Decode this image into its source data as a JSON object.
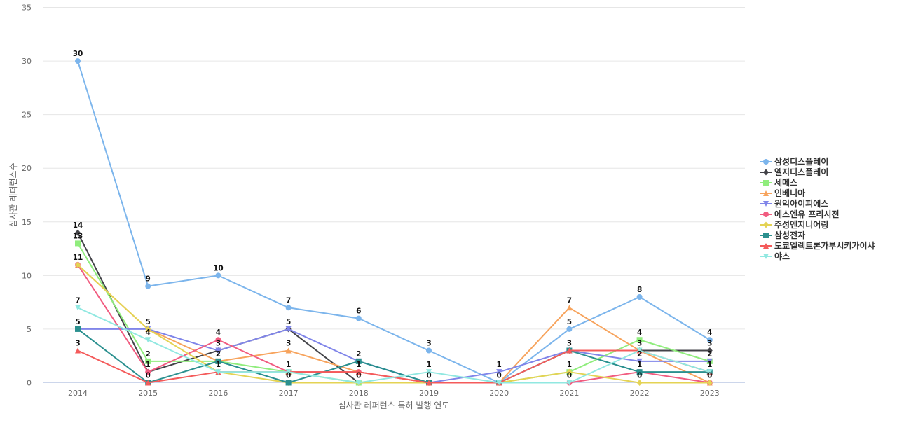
{
  "chart_data": {
    "type": "line",
    "title": "",
    "xlabel": "심사관 레퍼런스 특허 발행 연도",
    "ylabel": "심사관 레퍼런스수",
    "ylim": [
      0,
      35
    ],
    "yticks": [
      0,
      5,
      10,
      15,
      20,
      25,
      30,
      35
    ],
    "grid": true,
    "legend_position": "right",
    "x": [
      "2014",
      "2015",
      "2016",
      "2017",
      "2018",
      "2019",
      "2020",
      "2021",
      "2022",
      "2023"
    ],
    "series": [
      {
        "name": "삼성디스플레이",
        "color": "#7cb5ec",
        "marker": "circle",
        "values": [
          30,
          9,
          10,
          7,
          6,
          3,
          0,
          5,
          8,
          4
        ]
      },
      {
        "name": "엘지디스플레이",
        "color": "#434348",
        "marker": "diamond",
        "values": [
          14,
          1,
          3,
          5,
          0,
          0,
          0,
          3,
          3,
          3
        ]
      },
      {
        "name": "세메스",
        "color": "#90ed7d",
        "marker": "square",
        "values": [
          13,
          2,
          2,
          1,
          0,
          0,
          0,
          1,
          4,
          2
        ]
      },
      {
        "name": "인베니아",
        "color": "#f7a35c",
        "marker": "triangle",
        "values": [
          11,
          5,
          2,
          3,
          1,
          0,
          0,
          7,
          3,
          0
        ]
      },
      {
        "name": "원익아이피에스",
        "color": "#8085e9",
        "marker": "triangle-down",
        "values": [
          5,
          5,
          3,
          5,
          2,
          0,
          1,
          3,
          2,
          2
        ]
      },
      {
        "name": "에스엔유 프리시젼",
        "color": "#f15c80",
        "marker": "circle",
        "values": [
          11,
          1,
          4,
          1,
          1,
          0,
          0,
          0,
          1,
          0
        ]
      },
      {
        "name": "주성엔지니어링",
        "color": "#e4d354",
        "marker": "diamond",
        "values": [
          11,
          5,
          1,
          0,
          0,
          0,
          0,
          1,
          0,
          0
        ]
      },
      {
        "name": "삼성전자",
        "color": "#2b908f",
        "marker": "square",
        "values": [
          5,
          0,
          2,
          0,
          2,
          0,
          0,
          3,
          1,
          1
        ]
      },
      {
        "name": "도쿄엘렉트론가부시키가이샤",
        "color": "#f45b5b",
        "marker": "triangle",
        "values": [
          3,
          0,
          1,
          1,
          1,
          0,
          0,
          3,
          3,
          1
        ]
      },
      {
        "name": "야스",
        "color": "#91e8e1",
        "marker": "triangle-down",
        "values": [
          7,
          4,
          1,
          1,
          0,
          1,
          0,
          0,
          3,
          1
        ]
      }
    ],
    "data_labels": [
      {
        "x": "2014",
        "value": 30
      },
      {
        "x": "2014",
        "value": 14
      },
      {
        "x": "2014",
        "value": 13
      },
      {
        "x": "2014",
        "value": 11
      },
      {
        "x": "2014",
        "value": 7
      },
      {
        "x": "2014",
        "value": 5
      },
      {
        "x": "2014",
        "value": 3
      },
      {
        "x": "2015",
        "value": 9
      },
      {
        "x": "2015",
        "value": 5
      },
      {
        "x": "2015",
        "value": 4
      },
      {
        "x": "2015",
        "value": 2
      },
      {
        "x": "2015",
        "value": 1
      },
      {
        "x": "2015",
        "value": 0
      },
      {
        "x": "2016",
        "value": 10
      },
      {
        "x": "2016",
        "value": 4
      },
      {
        "x": "2016",
        "value": 3
      },
      {
        "x": "2016",
        "value": 2
      },
      {
        "x": "2016",
        "value": 1
      },
      {
        "x": "2017",
        "value": 7
      },
      {
        "x": "2017",
        "value": 5
      },
      {
        "x": "2017",
        "value": 3
      },
      {
        "x": "2017",
        "value": 1
      },
      {
        "x": "2017",
        "value": 0
      },
      {
        "x": "2018",
        "value": 6
      },
      {
        "x": "2018",
        "value": 2
      },
      {
        "x": "2018",
        "value": 1
      },
      {
        "x": "2018",
        "value": 0
      },
      {
        "x": "2019",
        "value": 3
      },
      {
        "x": "2019",
        "value": 1
      },
      {
        "x": "2019",
        "value": 0
      },
      {
        "x": "2020",
        "value": 1
      },
      {
        "x": "2020",
        "value": 0
      },
      {
        "x": "2021",
        "value": 7
      },
      {
        "x": "2021",
        "value": 5
      },
      {
        "x": "2021",
        "value": 3
      },
      {
        "x": "2021",
        "value": 1
      },
      {
        "x": "2021",
        "value": 0
      },
      {
        "x": "2022",
        "value": 8
      },
      {
        "x": "2022",
        "value": 4
      },
      {
        "x": "2022",
        "value": 3
      },
      {
        "x": "2022",
        "value": 2
      },
      {
        "x": "2022",
        "value": 1
      },
      {
        "x": "2022",
        "value": 0
      },
      {
        "x": "2023",
        "value": 4
      },
      {
        "x": "2023",
        "value": 3
      },
      {
        "x": "2023",
        "value": 2
      },
      {
        "x": "2023",
        "value": 1
      },
      {
        "x": "2023",
        "value": 0
      }
    ]
  }
}
